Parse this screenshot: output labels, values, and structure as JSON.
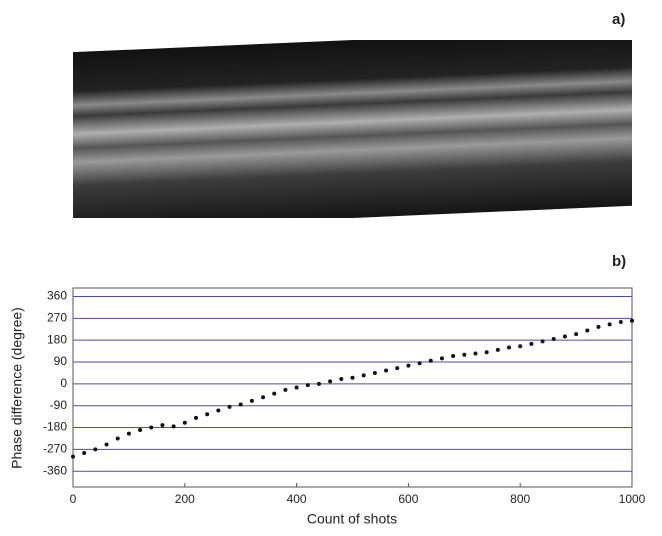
{
  "panel_labels": [
    "a)",
    "b)"
  ],
  "chart_data": {
    "type": "scatter",
    "x_label": "Count of shots",
    "y_label": "Phase difference (degree)",
    "x": [
      0,
      20,
      40,
      60,
      80,
      100,
      120,
      140,
      160,
      180,
      200,
      220,
      240,
      260,
      280,
      300,
      320,
      340,
      360,
      380,
      400,
      420,
      440,
      460,
      480,
      500,
      520,
      540,
      560,
      580,
      600,
      620,
      640,
      660,
      680,
      700,
      720,
      740,
      760,
      780,
      800,
      820,
      840,
      860,
      880,
      900,
      920,
      940,
      960,
      980,
      1000
    ],
    "values": [
      -300,
      -285,
      -270,
      -250,
      -225,
      -205,
      -190,
      -180,
      -170,
      -175,
      -160,
      -140,
      -125,
      -110,
      -95,
      -85,
      -70,
      -55,
      -40,
      -25,
      -15,
      -5,
      0,
      10,
      20,
      25,
      35,
      45,
      55,
      65,
      75,
      85,
      95,
      105,
      115,
      120,
      125,
      130,
      140,
      150,
      155,
      165,
      175,
      185,
      195,
      205,
      220,
      235,
      245,
      255,
      260
    ],
    "color": "#111111",
    "grid_color": "#4a4ab8",
    "xlim": [
      0,
      1000
    ],
    "xticks": [
      0,
      200,
      400,
      600,
      800,
      1000
    ],
    "ylim": [
      -425,
      395
    ],
    "yticks": [
      360,
      270,
      180,
      90,
      0,
      -90,
      -180,
      -270,
      -360
    ],
    "grid": true
  }
}
